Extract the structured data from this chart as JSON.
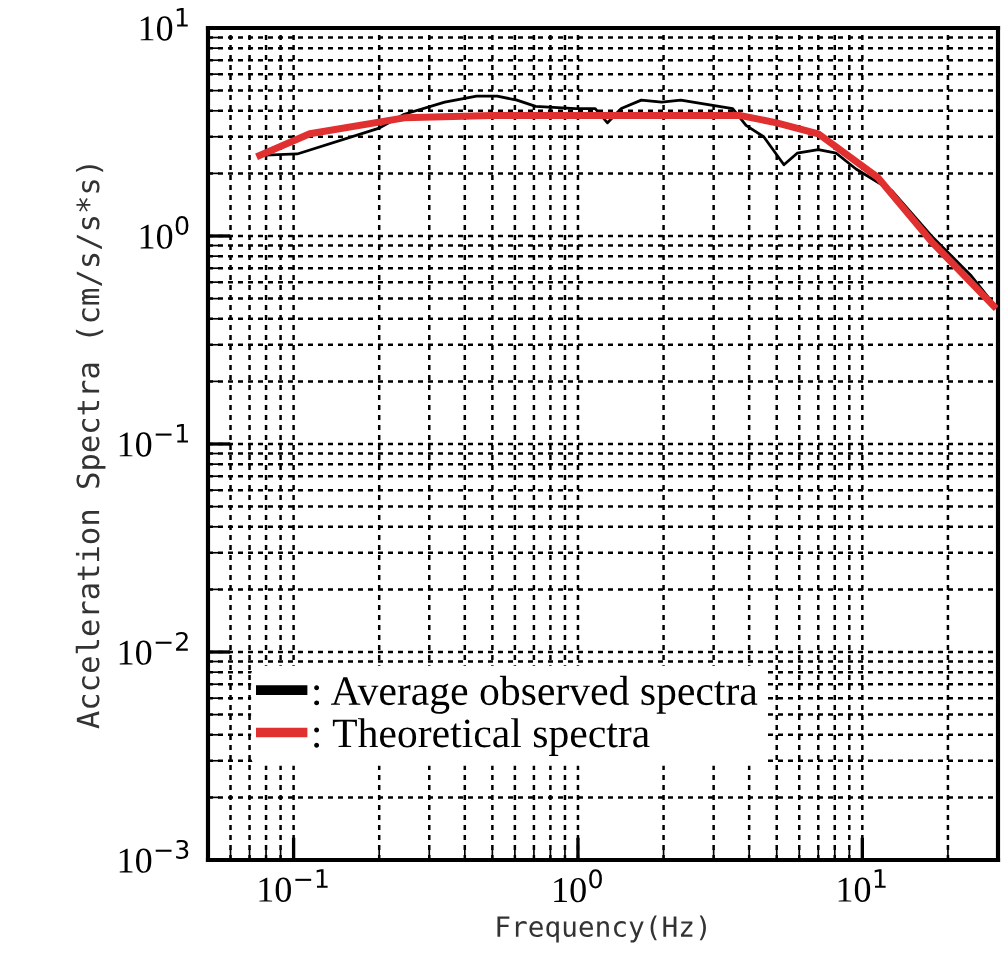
{
  "chart_data": {
    "type": "line",
    "xlabel": "Frequency(Hz)",
    "ylabel": "Acceleration Spectra (cm/s/s*s)",
    "log": "xy",
    "grid": true,
    "legend": "bottom left",
    "line_style": "solid",
    "marker": "none",
    "xlim": [
      0.05,
      30
    ],
    "ylim": [
      0.001,
      10
    ],
    "xticks": [
      {
        "value": 0.1,
        "label": "10$^{−1}$"
      },
      {
        "value": 1,
        "label": "10$^{0}$"
      },
      {
        "value": 10,
        "label": "10$^{1}$"
      }
    ],
    "yticks": [
      {
        "value": 0.001,
        "label": "10$^{−3}$"
      },
      {
        "value": 0.01,
        "label": "10$^{−2}$"
      },
      {
        "value": 0.1,
        "label": "10$^{−1}$"
      },
      {
        "value": 1,
        "label": "10$^{0}$"
      },
      {
        "value": 10,
        "label": "10$^{1}$"
      }
    ],
    "series": [
      {
        "name": ": Average observed spectra",
        "color": "#000000",
        "x": [
          0.076,
          0.103,
          0.2,
          0.245,
          0.34,
          0.44,
          0.52,
          0.61,
          0.71,
          0.98,
          1.15,
          1.27,
          1.42,
          1.67,
          1.97,
          2.3,
          2.8,
          3.5,
          3.9,
          4.5,
          5.3,
          5.9,
          7.0,
          8.1,
          9.5,
          12.7,
          17.5,
          24,
          29
        ],
        "values": [
          2.44,
          2.48,
          3.3,
          3.85,
          4.4,
          4.7,
          4.7,
          4.5,
          4.2,
          4.1,
          4.1,
          3.5,
          4.1,
          4.5,
          4.4,
          4.5,
          4.3,
          4.1,
          3.4,
          3.0,
          2.2,
          2.5,
          2.6,
          2.5,
          2.1,
          1.65,
          1.0,
          0.65,
          0.47
        ]
      },
      {
        "name": ": Theoretical spectra",
        "color": "#e03030",
        "x": [
          0.076,
          0.114,
          0.245,
          0.5,
          1,
          2,
          3.7,
          5,
          7.0,
          11.3,
          17.5,
          29
        ],
        "values": [
          2.44,
          3.1,
          3.7,
          3.8,
          3.8,
          3.8,
          3.8,
          3.5,
          3.1,
          1.92,
          0.94,
          0.46
        ]
      }
    ]
  }
}
